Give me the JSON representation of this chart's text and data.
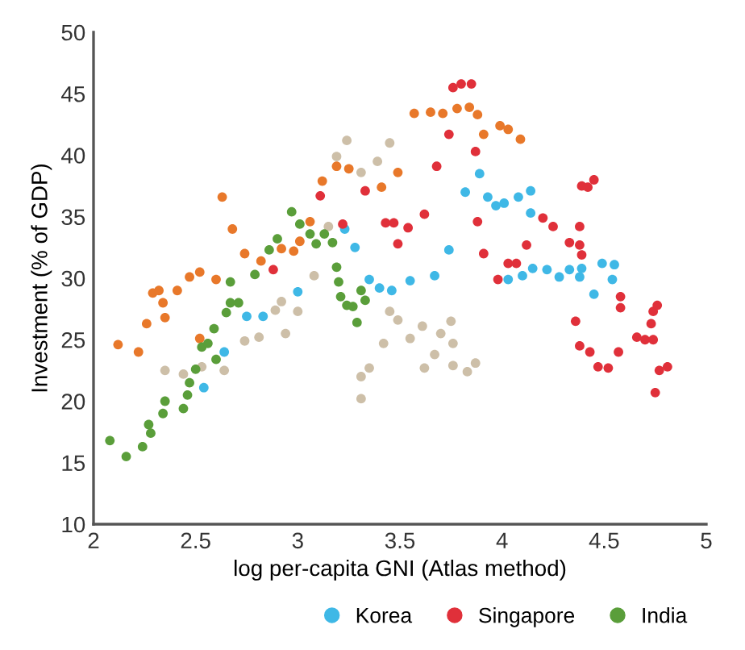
{
  "chart_data": {
    "type": "scatter",
    "xlabel": "log per-capita GNI (Atlas method)",
    "ylabel": "Investment (% of GDP)",
    "xlim": [
      2,
      5
    ],
    "xticks": [
      2,
      2.5,
      3,
      3.5,
      4,
      4.5,
      5
    ],
    "ylim": [
      10,
      50
    ],
    "yticks": [
      10,
      15,
      20,
      25,
      30,
      35,
      40,
      45,
      50
    ],
    "grid": false,
    "legend": "bottom right",
    "marker": "circle",
    "series": [
      {
        "color": "#cdbfa8",
        "x": [
          2.35,
          2.44,
          2.53,
          2.64,
          2.74,
          2.81,
          2.89,
          2.92,
          2.94,
          3.0,
          3.08,
          3.15,
          3.19,
          3.24,
          3.31,
          3.39,
          3.45,
          3.31,
          3.31,
          3.35,
          3.42,
          3.45,
          3.49,
          3.55,
          3.61,
          3.62,
          3.67,
          3.7,
          3.75,
          3.76,
          3.76,
          3.83,
          3.87
        ],
        "values": [
          22.5,
          22.2,
          22.8,
          22.5,
          24.9,
          25.2,
          27.4,
          28.1,
          25.5,
          27.3,
          30.2,
          34.2,
          39.9,
          41.2,
          38.6,
          39.5,
          41.0,
          22.0,
          20.2,
          22.7,
          24.7,
          27.3,
          26.6,
          25.1,
          26.1,
          22.7,
          23.8,
          25.5,
          26.5,
          24.7,
          22.9,
          22.4,
          23.1
        ]
      },
      {
        "color": "#e8782a",
        "x": [
          2.12,
          2.22,
          2.26,
          2.29,
          2.32,
          2.34,
          2.35,
          2.41,
          2.47,
          2.52,
          2.6,
          2.63,
          2.68,
          2.74,
          2.82,
          2.92,
          2.98,
          3.01,
          3.06,
          3.12,
          3.19,
          3.25,
          3.41,
          3.49,
          2.52,
          3.57,
          3.65,
          3.71,
          3.78,
          3.84,
          3.88,
          3.91,
          3.99,
          4.03,
          4.09
        ],
        "values": [
          24.6,
          24.0,
          26.3,
          28.8,
          29.0,
          28.0,
          26.8,
          29.0,
          30.1,
          30.5,
          29.9,
          36.6,
          34.0,
          32.0,
          31.4,
          32.4,
          32.2,
          33.0,
          34.6,
          37.9,
          39.1,
          38.9,
          37.4,
          38.6,
          25.1,
          43.4,
          43.5,
          43.4,
          43.8,
          43.9,
          43.3,
          41.7,
          42.4,
          42.1,
          41.3
        ]
      },
      {
        "name": "Korea",
        "color": "#3fb8e6",
        "x": [
          2.54,
          2.64,
          2.75,
          2.83,
          3.0,
          3.23,
          3.28,
          3.35,
          3.4,
          3.46,
          3.55,
          3.67,
          3.74,
          3.82,
          3.89,
          3.93,
          3.97,
          4.01,
          4.08,
          4.14,
          4.14,
          4.03,
          4.1,
          4.15,
          4.22,
          4.28,
          4.33,
          4.38,
          4.39,
          4.45,
          4.49,
          4.54,
          4.55
        ],
        "values": [
          21.1,
          24.0,
          26.9,
          26.9,
          28.9,
          34.0,
          32.5,
          29.9,
          29.2,
          29.0,
          29.8,
          30.2,
          32.3,
          37.0,
          38.5,
          36.6,
          35.9,
          36.1,
          36.6,
          37.1,
          35.3,
          29.9,
          30.2,
          30.8,
          30.7,
          30.1,
          30.7,
          30.1,
          30.8,
          28.7,
          31.2,
          29.9,
          31.1
        ]
      },
      {
        "name": "Singapore",
        "color": "#e0303a",
        "x": [
          2.88,
          3.11,
          3.22,
          3.33,
          3.43,
          3.47,
          3.49,
          3.54,
          3.62,
          3.68,
          3.74,
          3.76,
          3.8,
          3.85,
          3.87,
          3.88,
          3.91,
          3.98,
          4.03,
          4.07,
          4.12,
          4.2,
          4.25,
          4.33,
          4.38,
          4.39,
          4.42,
          4.45,
          4.38,
          4.39,
          4.36,
          4.38,
          4.43,
          4.47,
          4.52,
          4.57,
          4.58,
          4.58,
          4.66,
          4.7,
          4.73,
          4.74,
          4.76,
          4.74,
          4.77,
          4.81,
          4.75
        ],
        "values": [
          30.7,
          36.7,
          34.4,
          37.1,
          34.5,
          34.5,
          32.8,
          34.1,
          35.2,
          39.1,
          41.7,
          45.5,
          45.8,
          45.8,
          40.3,
          34.6,
          32.0,
          29.9,
          31.2,
          31.2,
          32.7,
          34.9,
          34.2,
          32.9,
          34.2,
          37.5,
          37.4,
          38.0,
          32.7,
          31.9,
          26.5,
          24.5,
          24.0,
          22.8,
          22.7,
          24.0,
          28.5,
          27.6,
          25.2,
          25.0,
          26.3,
          27.3,
          27.8,
          25.0,
          22.5,
          22.8,
          20.7
        ]
      },
      {
        "name": "India",
        "color": "#5a9e3a",
        "x": [
          2.08,
          2.16,
          2.24,
          2.27,
          2.28,
          2.34,
          2.35,
          2.44,
          2.46,
          2.47,
          2.5,
          2.53,
          2.56,
          2.59,
          2.6,
          2.65,
          2.67,
          2.71,
          2.67,
          2.79,
          2.86,
          2.9,
          2.97,
          3.01,
          3.06,
          3.09,
          3.13,
          3.17,
          3.19,
          3.2,
          3.21,
          3.24,
          3.27,
          3.29,
          3.31,
          3.33
        ],
        "values": [
          16.8,
          15.5,
          16.3,
          18.1,
          17.4,
          19.0,
          20.0,
          19.4,
          20.5,
          21.5,
          22.6,
          24.4,
          24.7,
          25.9,
          23.4,
          27.2,
          28.0,
          28.0,
          29.7,
          30.3,
          32.3,
          33.2,
          35.4,
          34.4,
          33.6,
          32.8,
          33.6,
          32.9,
          30.9,
          29.7,
          28.5,
          27.8,
          27.7,
          26.4,
          29.0,
          28.2
        ]
      }
    ]
  }
}
